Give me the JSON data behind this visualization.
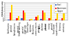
{
  "categories": [
    "Acidification\npotential",
    "Eutrophication\npotential",
    "Global warming\npotential\n(GWP 100)",
    "Ozone layer\ndepletion",
    "Photochem.\nozone creation\npotential",
    "Abiotic\ndepletion\npotential",
    "Human\ntoxicity\npotential",
    "Fresh water\naquatic ecotox.",
    "Terrestrial\necotoxicity"
  ],
  "series": [
    {
      "label": "Steel",
      "color": "#4472C4",
      "values": [
        2,
        1,
        5,
        0.5,
        2,
        3,
        1,
        0.5,
        0.5
      ]
    },
    {
      "label": "Aluminium",
      "color": "#FF2020",
      "values": [
        18,
        5,
        22,
        2,
        8,
        22,
        5,
        3,
        5
      ]
    },
    {
      "label": "Copper",
      "color": "#FFD700",
      "values": [
        35,
        10,
        18,
        3,
        12,
        18,
        35,
        35,
        18
      ]
    }
  ],
  "ylim": [
    0,
    40
  ],
  "yticks": [
    0,
    5,
    10,
    15,
    20,
    25,
    30,
    35,
    40
  ],
  "background_color": "#FFFFFF",
  "plot_bg_color": "#F0F0F0",
  "grid_color": "#FFFFFF",
  "legend_loc": "upper right"
}
